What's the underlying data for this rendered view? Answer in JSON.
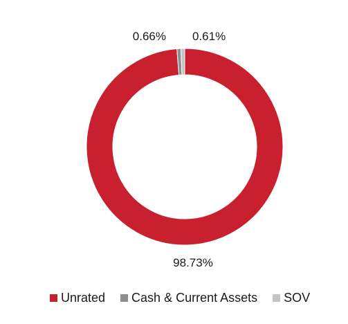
{
  "chart_data": {
    "type": "pie",
    "style": "donut",
    "categories": [
      "Unrated",
      "Cash & Current Assets",
      "SOV"
    ],
    "values": [
      98.73,
      0.66,
      0.61
    ],
    "data_labels": [
      "98.73%",
      "0.66%",
      "0.61%"
    ],
    "colors": [
      "#c8202f",
      "#8f8f8f",
      "#c4c4c4"
    ],
    "legend_position": "bottom",
    "title": "",
    "xlabel": "",
    "ylabel": ""
  }
}
